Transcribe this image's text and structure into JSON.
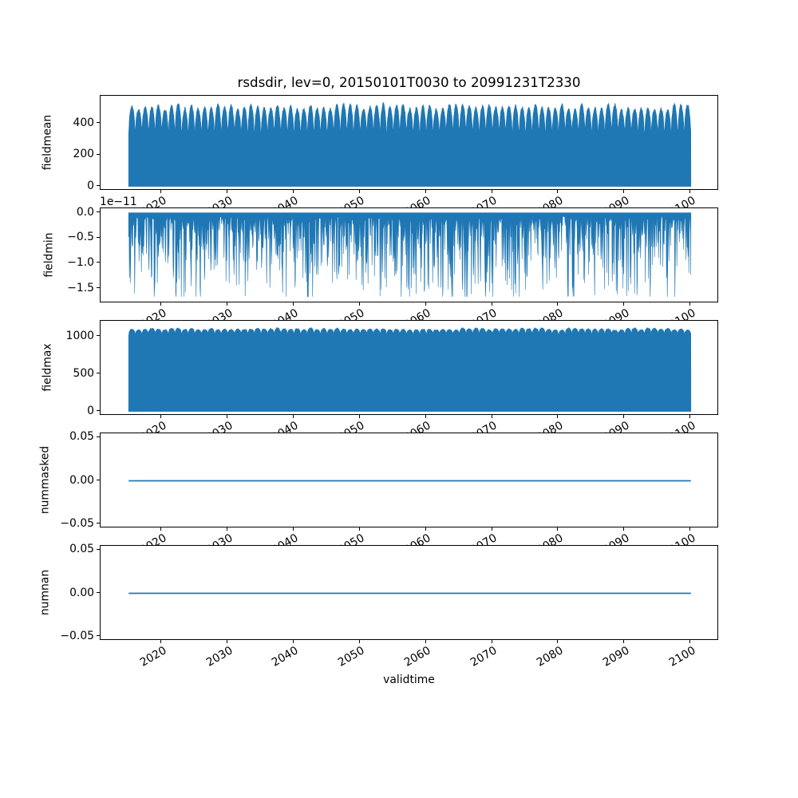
{
  "figure": {
    "title": "rsdsdir, lev=0, 20150101T0030 to 20991231T2330",
    "xlabel": "validtime",
    "line_color": "#1f77b4",
    "background": "#ffffff"
  },
  "x_axis": {
    "start": 2015.0,
    "end": 2100.0,
    "xlim": [
      2010.75,
      2104.25
    ],
    "tick_values": [
      2020,
      2030,
      2040,
      2050,
      2060,
      2070,
      2080,
      2090,
      2100
    ],
    "tick_labels": [
      "2020",
      "2030",
      "2040",
      "2050",
      "2060",
      "2070",
      "2080",
      "2090",
      "2100"
    ],
    "tick_rotation_deg": 30
  },
  "chart_data": [
    {
      "type": "area",
      "ylabel": "fieldmean",
      "ylim": [
        -27.5,
        577.5
      ],
      "ytick_values": [
        0,
        200,
        400
      ],
      "ytick_labels": [
        "0",
        "200",
        "400"
      ],
      "summary": {
        "min": 0,
        "annual_peak_range": [
          480,
          545
        ],
        "annual_valley_range": [
          320,
          380
        ],
        "description": "dense diurnal series filling from 0 up to a seasonally oscillating top envelope, one cycle per year"
      },
      "gen": {
        "kind": "seasonal_fill",
        "valley": 325,
        "peak": 512,
        "peak_jitter": 20,
        "valley_jitter": 16,
        "shape_exp": 0.5,
        "noise": 9,
        "seed": 7
      }
    },
    {
      "type": "area",
      "ylabel": "fieldmin",
      "offset_label": "1e−11",
      "ylim": [
        -1.7905,
        0.0905
      ],
      "ytick_values": [
        0,
        -0.5,
        -1.0,
        -1.5
      ],
      "ytick_labels": [
        "0.0",
        "−0.5",
        "−1.0",
        "−1.5"
      ],
      "summary": {
        "max": 0,
        "units_multiplier": "1e-11",
        "typical_spike_depth": [
          -0.2,
          -1.2
        ],
        "deepest_spike": -1.65,
        "description": "baseline at 0 with dense irregular downward spikes (values are tiny negatives of order 1e-11)"
      },
      "gen": {
        "kind": "down_spikes",
        "base": 0.1,
        "amp": 1.5,
        "exp": 3.0,
        "deep_p": 0.012,
        "deep_base": 1.25,
        "deep_amp": 0.4,
        "clamp": 1.66,
        "seed": 13
      }
    },
    {
      "type": "area",
      "ylabel": "fieldmax",
      "ylim": [
        -57.5,
        1207.5
      ],
      "ytick_values": [
        0,
        500,
        1000
      ],
      "ytick_labels": [
        "0",
        "500",
        "1000"
      ],
      "summary": {
        "min": 0,
        "top_plateau_range": [
          1060,
          1110
        ],
        "annual_notch_depth": 1000,
        "description": "dense series filling from 0 to ~1100 with small annual scalloped notches at the top"
      },
      "gen": {
        "kind": "seasonal_fill",
        "valley": 1000,
        "peak": 1098,
        "peak_jitter": 14,
        "valley_jitter": 10,
        "shape_exp": 0.22,
        "noise": 7,
        "seed": 21
      }
    },
    {
      "type": "line",
      "ylabel": "nummasked",
      "ylim": [
        -0.055,
        0.055
      ],
      "ytick_values": [
        0.05,
        0.0,
        -0.05
      ],
      "ytick_labels": [
        "0.05",
        "0.00",
        "−0.05"
      ],
      "summary": {
        "constant_value": 0,
        "description": "flat line at 0 for the whole period"
      },
      "gen": {
        "kind": "hline",
        "value": 0
      }
    },
    {
      "type": "line",
      "ylabel": "numnan",
      "ylim": [
        -0.055,
        0.055
      ],
      "ytick_values": [
        0.05,
        0.0,
        -0.05
      ],
      "ytick_labels": [
        "0.05",
        "0.00",
        "−0.05"
      ],
      "summary": {
        "constant_value": 0,
        "description": "flat line at 0 for the whole period"
      },
      "gen": {
        "kind": "hline",
        "value": 0
      }
    }
  ]
}
